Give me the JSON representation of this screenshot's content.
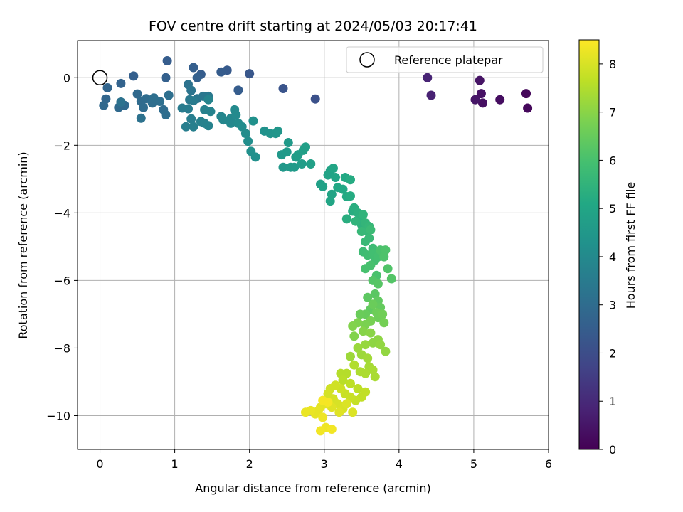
{
  "chart_data": {
    "type": "scatter",
    "title": "FOV centre drift starting at 2024/05/03 20:17:41",
    "xlabel": "Angular distance from reference (arcmin)",
    "ylabel": "Rotation from reference (arcmin)",
    "xlim": [
      -0.3,
      6.0
    ],
    "ylim": [
      -11.0,
      1.1
    ],
    "xticks": [
      0,
      1,
      2,
      3,
      4,
      5,
      6
    ],
    "xtick_labels": [
      "0",
      "1",
      "2",
      "3",
      "4",
      "5",
      "6"
    ],
    "yticks": [
      0,
      -2,
      -4,
      -6,
      -8,
      -10
    ],
    "ytick_labels": [
      "0",
      "−2",
      "−4",
      "−6",
      "−8",
      "−10"
    ],
    "grid": true,
    "colormap": "viridis",
    "colorbar": {
      "label": "Hours from first FF file",
      "min": 0,
      "max": 8.5,
      "ticks": [
        0,
        1,
        2,
        3,
        4,
        5,
        6,
        7,
        8
      ],
      "tick_labels": [
        "0",
        "1",
        "2",
        "3",
        "4",
        "5",
        "6",
        "7",
        "8"
      ]
    },
    "legend": {
      "position": "top-right",
      "entries": [
        "Reference platepar"
      ]
    },
    "reference_point": {
      "x": 0,
      "y": 0
    },
    "series": [
      {
        "columns": [
          "x",
          "y",
          "hours"
        ],
        "points": [
          [
            5.7,
            -0.47,
            0.15
          ],
          [
            5.72,
            -0.9,
            0.18
          ],
          [
            5.35,
            -0.65,
            0.3
          ],
          [
            5.12,
            -0.75,
            0.35
          ],
          [
            5.1,
            -0.47,
            0.4
          ],
          [
            5.08,
            -0.08,
            0.45
          ],
          [
            5.02,
            -0.65,
            0.5
          ],
          [
            4.43,
            -0.52,
            0.8
          ],
          [
            4.38,
            0.0,
            0.85
          ],
          [
            2.88,
            -0.63,
            2.1
          ],
          [
            2.45,
            -0.32,
            2.2
          ],
          [
            2.0,
            0.12,
            2.3
          ],
          [
            1.7,
            0.22,
            2.4
          ],
          [
            1.62,
            0.17,
            2.45
          ],
          [
            1.85,
            -0.37,
            2.5
          ],
          [
            1.35,
            0.1,
            2.5
          ],
          [
            1.25,
            0.3,
            2.55
          ],
          [
            1.3,
            0.0,
            2.6
          ],
          [
            0.9,
            0.5,
            2.5
          ],
          [
            0.88,
            0.0,
            2.6
          ],
          [
            0.45,
            0.05,
            2.6
          ],
          [
            0.28,
            -0.17,
            2.7
          ],
          [
            0.1,
            -0.3,
            2.75
          ],
          [
            0.08,
            -0.63,
            2.8
          ],
          [
            0.05,
            -0.82,
            2.85
          ],
          [
            0.25,
            -0.88,
            2.9
          ],
          [
            0.33,
            -0.82,
            2.9
          ],
          [
            0.5,
            -0.48,
            2.9
          ],
          [
            0.55,
            -0.7,
            2.95
          ],
          [
            0.62,
            -0.62,
            3.0
          ],
          [
            0.58,
            -0.88,
            3.0
          ],
          [
            0.7,
            -0.75,
            3.05
          ],
          [
            0.72,
            -0.6,
            3.1
          ],
          [
            0.85,
            -0.95,
            3.0
          ],
          [
            0.88,
            -1.1,
            3.05
          ],
          [
            0.92,
            -0.52,
            3.1
          ],
          [
            0.8,
            -0.7,
            3.1
          ],
          [
            0.55,
            -1.2,
            3.2
          ],
          [
            0.28,
            -0.72,
            3.2
          ],
          [
            1.18,
            -0.2,
            3.2
          ],
          [
            1.22,
            -0.38,
            3.25
          ],
          [
            1.3,
            -0.62,
            3.3
          ],
          [
            1.38,
            -0.55,
            3.35
          ],
          [
            1.45,
            -0.55,
            3.4
          ],
          [
            1.2,
            -0.65,
            3.4
          ],
          [
            1.25,
            -0.68,
            3.5
          ],
          [
            1.1,
            -0.9,
            3.5
          ],
          [
            1.18,
            -0.92,
            3.55
          ],
          [
            1.15,
            -1.45,
            3.6
          ],
          [
            1.22,
            -1.22,
            3.6
          ],
          [
            1.25,
            -1.45,
            3.65
          ],
          [
            1.35,
            -1.3,
            3.7
          ],
          [
            1.4,
            -1.35,
            3.7
          ],
          [
            1.45,
            -1.42,
            3.75
          ],
          [
            1.4,
            -0.95,
            3.7
          ],
          [
            1.48,
            -1.0,
            3.75
          ],
          [
            1.45,
            -0.65,
            3.8
          ],
          [
            1.62,
            -1.15,
            3.85
          ],
          [
            1.65,
            -1.25,
            3.9
          ],
          [
            1.75,
            -1.2,
            3.9
          ],
          [
            1.75,
            -1.35,
            3.95
          ],
          [
            1.8,
            -0.95,
            4.0
          ],
          [
            1.82,
            -1.1,
            4.0
          ],
          [
            1.85,
            -1.35,
            4.05
          ],
          [
            1.9,
            -1.45,
            4.1
          ],
          [
            1.95,
            -1.65,
            4.1
          ],
          [
            1.98,
            -1.88,
            4.15
          ],
          [
            2.02,
            -2.18,
            4.2
          ],
          [
            2.08,
            -2.35,
            4.2
          ],
          [
            2.05,
            -1.28,
            4.25
          ],
          [
            2.2,
            -1.58,
            4.3
          ],
          [
            2.28,
            -1.65,
            4.35
          ],
          [
            2.35,
            -1.65,
            4.4
          ],
          [
            2.38,
            -1.58,
            4.45
          ],
          [
            2.43,
            -2.28,
            4.5
          ],
          [
            2.45,
            -2.65,
            4.5
          ],
          [
            2.5,
            -2.2,
            4.55
          ],
          [
            2.52,
            -1.92,
            4.55
          ],
          [
            2.55,
            -2.65,
            4.6
          ],
          [
            2.6,
            -2.65,
            4.6
          ],
          [
            2.62,
            -2.35,
            4.65
          ],
          [
            2.65,
            -2.28,
            4.7
          ],
          [
            2.7,
            -2.55,
            4.7
          ],
          [
            2.72,
            -2.15,
            4.75
          ],
          [
            2.75,
            -2.05,
            4.75
          ],
          [
            2.82,
            -2.55,
            4.8
          ],
          [
            2.95,
            -3.15,
            4.8
          ],
          [
            2.98,
            -3.22,
            4.85
          ],
          [
            3.05,
            -2.88,
            4.9
          ],
          [
            3.08,
            -2.75,
            4.9
          ],
          [
            3.1,
            -3.45,
            4.95
          ],
          [
            3.12,
            -2.68,
            5.0
          ],
          [
            3.15,
            -2.95,
            5.0
          ],
          [
            3.08,
            -3.65,
            5.0
          ],
          [
            3.18,
            -3.25,
            5.05
          ],
          [
            3.25,
            -3.3,
            5.1
          ],
          [
            3.28,
            -2.95,
            5.1
          ],
          [
            3.3,
            -3.52,
            5.15
          ],
          [
            3.35,
            -3.5,
            5.2
          ],
          [
            3.35,
            -3.02,
            5.2
          ],
          [
            3.38,
            -3.95,
            5.25
          ],
          [
            3.3,
            -4.18,
            5.3
          ],
          [
            3.4,
            -3.85,
            5.3
          ],
          [
            3.45,
            -4.0,
            5.35
          ],
          [
            3.48,
            -4.15,
            5.4
          ],
          [
            3.5,
            -4.35,
            5.45
          ],
          [
            3.42,
            -4.25,
            5.5
          ],
          [
            3.52,
            -4.05,
            5.5
          ],
          [
            3.55,
            -4.3,
            5.55
          ],
          [
            3.58,
            -4.55,
            5.6
          ],
          [
            3.6,
            -4.4,
            5.6
          ],
          [
            3.5,
            -4.55,
            5.65
          ],
          [
            3.55,
            -4.85,
            5.7
          ],
          [
            3.6,
            -4.75,
            5.7
          ],
          [
            3.62,
            -4.5,
            5.75
          ],
          [
            3.65,
            -5.05,
            5.8
          ],
          [
            3.52,
            -5.15,
            5.8
          ],
          [
            3.58,
            -5.25,
            5.85
          ],
          [
            3.65,
            -5.2,
            5.9
          ],
          [
            3.68,
            -5.4,
            5.9
          ],
          [
            3.72,
            -5.3,
            5.95
          ],
          [
            3.62,
            -5.55,
            6.0
          ],
          [
            3.55,
            -5.65,
            6.0
          ],
          [
            3.7,
            -5.85,
            6.05
          ],
          [
            3.75,
            -5.1,
            6.05
          ],
          [
            3.8,
            -5.3,
            6.1
          ],
          [
            3.82,
            -5.1,
            6.1
          ],
          [
            3.85,
            -5.65,
            6.15
          ],
          [
            3.9,
            -5.95,
            6.2
          ],
          [
            3.65,
            -6.0,
            6.2
          ],
          [
            3.72,
            -6.1,
            6.25
          ],
          [
            3.68,
            -6.4,
            6.3
          ],
          [
            3.58,
            -6.5,
            6.35
          ],
          [
            3.62,
            -6.85,
            6.4
          ],
          [
            3.72,
            -6.6,
            6.4
          ],
          [
            3.75,
            -6.8,
            6.45
          ],
          [
            3.55,
            -7.0,
            6.5
          ],
          [
            3.48,
            -7.0,
            6.55
          ],
          [
            3.65,
            -6.7,
            6.55
          ],
          [
            3.7,
            -6.95,
            6.6
          ],
          [
            3.72,
            -7.1,
            6.6
          ],
          [
            3.78,
            -7.0,
            6.65
          ],
          [
            3.8,
            -7.25,
            6.7
          ],
          [
            3.62,
            -7.2,
            6.75
          ],
          [
            3.55,
            -7.3,
            6.8
          ],
          [
            3.45,
            -7.25,
            6.85
          ],
          [
            3.38,
            -7.35,
            6.9
          ],
          [
            3.4,
            -7.65,
            6.9
          ],
          [
            3.52,
            -7.5,
            6.95
          ],
          [
            3.62,
            -7.55,
            7.0
          ],
          [
            3.65,
            -7.85,
            7.05
          ],
          [
            3.72,
            -7.75,
            7.05
          ],
          [
            3.75,
            -7.9,
            7.1
          ],
          [
            3.82,
            -8.1,
            7.1
          ],
          [
            3.55,
            -7.9,
            7.15
          ],
          [
            3.45,
            -8.0,
            7.2
          ],
          [
            3.35,
            -8.25,
            7.25
          ],
          [
            3.5,
            -8.2,
            7.25
          ],
          [
            3.58,
            -8.3,
            7.3
          ],
          [
            3.6,
            -8.55,
            7.35
          ],
          [
            3.65,
            -8.65,
            7.4
          ],
          [
            3.68,
            -8.85,
            7.4
          ],
          [
            3.55,
            -8.75,
            7.45
          ],
          [
            3.48,
            -8.7,
            7.45
          ],
          [
            3.4,
            -8.5,
            7.5
          ],
          [
            3.3,
            -8.75,
            7.55
          ],
          [
            3.22,
            -8.75,
            7.55
          ],
          [
            3.25,
            -8.95,
            7.6
          ],
          [
            3.35,
            -9.05,
            7.65
          ],
          [
            3.45,
            -9.2,
            7.65
          ],
          [
            3.55,
            -9.3,
            7.7
          ],
          [
            3.5,
            -9.45,
            7.7
          ],
          [
            3.42,
            -9.55,
            7.75
          ],
          [
            3.35,
            -9.45,
            7.8
          ],
          [
            3.28,
            -9.35,
            7.8
          ],
          [
            3.22,
            -9.2,
            7.85
          ],
          [
            3.15,
            -9.1,
            7.9
          ],
          [
            3.08,
            -9.2,
            7.9
          ],
          [
            3.05,
            -9.35,
            7.95
          ],
          [
            3.12,
            -9.5,
            7.95
          ],
          [
            3.18,
            -9.65,
            8.0
          ],
          [
            3.25,
            -9.8,
            8.0
          ],
          [
            3.3,
            -9.65,
            8.05
          ],
          [
            3.38,
            -9.9,
            8.05
          ],
          [
            3.2,
            -9.9,
            8.1
          ],
          [
            3.1,
            -9.75,
            8.1
          ],
          [
            3.02,
            -9.65,
            8.15
          ],
          [
            2.95,
            -9.75,
            8.15
          ],
          [
            2.92,
            -9.85,
            8.2
          ],
          [
            2.88,
            -9.95,
            8.2
          ],
          [
            2.82,
            -9.85,
            8.25
          ],
          [
            2.75,
            -9.9,
            8.25
          ],
          [
            2.98,
            -10.05,
            8.3
          ],
          [
            3.02,
            -10.35,
            8.3
          ],
          [
            2.95,
            -10.45,
            8.35
          ],
          [
            3.1,
            -10.4,
            8.35
          ],
          [
            3.05,
            -9.6,
            8.4
          ],
          [
            2.98,
            -9.55,
            8.4
          ]
        ]
      }
    ]
  }
}
